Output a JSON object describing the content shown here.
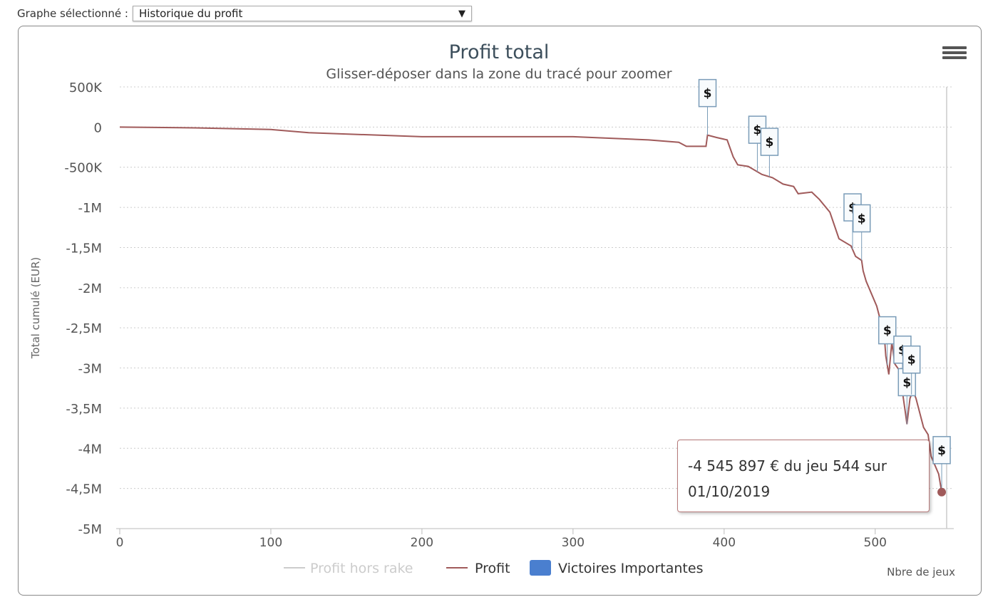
{
  "selector": {
    "label": "Graphe sélectionné :",
    "value": "Historique du profit",
    "arrow": "▼"
  },
  "menu_icon": "hamburger-menu-icon",
  "tooltip": {
    "line1": "-4 545 897 € du jeu 544 sur",
    "line2": "01/10/2019"
  },
  "chart_data": {
    "type": "line",
    "title": "Profit total",
    "subtitle": "Glisser-déposer dans la zone du tracé pour zoomer",
    "xlabel": "Nbre de jeux",
    "ylabel": "Total cumulé (EUR)",
    "xlim": [
      0,
      552
    ],
    "ylim": [
      -5000000,
      500000
    ],
    "xticks": [
      0,
      100,
      200,
      300,
      400,
      500
    ],
    "xtick_labels": [
      "0",
      "100",
      "200",
      "300",
      "400",
      "500"
    ],
    "yticks": [
      500000,
      0,
      -500000,
      -1000000,
      -1500000,
      -2000000,
      -2500000,
      -3000000,
      -3500000,
      -4000000,
      -4500000,
      -5000000
    ],
    "ytick_labels": [
      "500K",
      "0",
      "-500K",
      "-1M",
      "-1,5M",
      "-2M",
      "-2,5M",
      "-3M",
      "-3,5M",
      "-4M",
      "-4,5M",
      "-5M"
    ],
    "grid": true,
    "legend_position": "bottom",
    "series": [
      {
        "name": "Profit hors rake",
        "color": "#cccccc",
        "hidden": true,
        "x": [],
        "y": []
      },
      {
        "name": "Profit",
        "color": "#a05a5a",
        "x": [
          0,
          50,
          100,
          125,
          200,
          300,
          350,
          370,
          375,
          388,
          389,
          395,
          402,
          406,
          409,
          416,
          425,
          432,
          439,
          446,
          449,
          458,
          463,
          470,
          472,
          476,
          484,
          487,
          491,
          492,
          494,
          501,
          506,
          507,
          509,
          511,
          513,
          516,
          520,
          521,
          523,
          525,
          527,
          532,
          535,
          537,
          542,
          544
        ],
        "y": [
          0,
          -10000,
          -30000,
          -70000,
          -120000,
          -120000,
          -160000,
          -190000,
          -240000,
          -240000,
          -100000,
          -130000,
          -160000,
          -370000,
          -470000,
          -490000,
          -590000,
          -630000,
          -710000,
          -740000,
          -830000,
          -810000,
          -900000,
          -1060000,
          -1170000,
          -1390000,
          -1480000,
          -1610000,
          -1660000,
          -1790000,
          -1920000,
          -2230000,
          -2590000,
          -2850000,
          -3080000,
          -2680000,
          -2950000,
          -3030000,
          -3560000,
          -3700000,
          -3380000,
          -3280000,
          -3380000,
          -3740000,
          -3830000,
          -4100000,
          -4320000,
          -4545897
        ]
      },
      {
        "name": "Victoires Importantes",
        "color": "#4a7fcf",
        "type": "flags",
        "flag_label": "$",
        "x": [
          389,
          422,
          430,
          485,
          491,
          508,
          518,
          521,
          524,
          544
        ]
      }
    ]
  }
}
